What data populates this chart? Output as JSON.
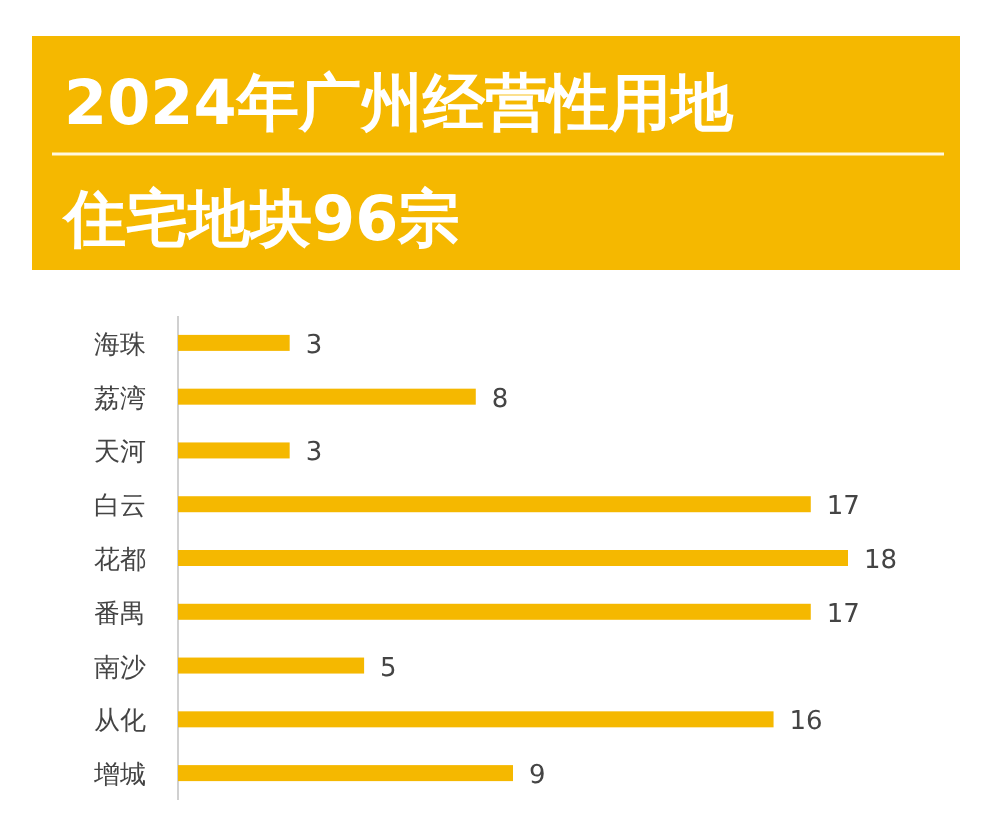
{
  "chart_data": {
    "type": "bar",
    "orientation": "horizontal",
    "title": "2024年广州经营性用地",
    "subtitle": "住宅地块96宗",
    "categories": [
      "海珠",
      "荔湾",
      "天河",
      "白云",
      "花都",
      "番禺",
      "南沙",
      "从化",
      "增城"
    ],
    "values": [
      3,
      8,
      3,
      17,
      18,
      17,
      5,
      16,
      9
    ],
    "color": "#f5b800",
    "data_labels": true
  }
}
